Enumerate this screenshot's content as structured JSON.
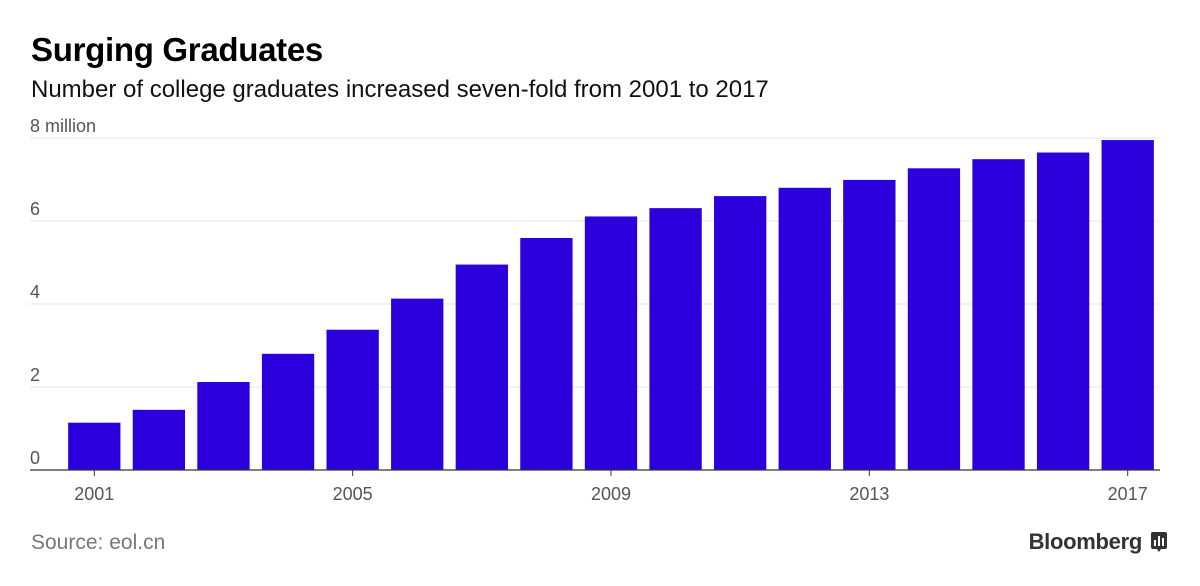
{
  "header": {
    "title": "Surging Graduates",
    "subtitle": "Number of college graduates increased seven-fold from 2001 to 2017"
  },
  "footer": {
    "source": "Source: eol.cn",
    "brand": "Bloomberg",
    "brand_icon": "bloomberg-terminal-icon"
  },
  "colors": {
    "bar": "#2c00dc",
    "grid": "#e6e6e6",
    "axis": "#333333"
  },
  "chart_data": {
    "type": "bar",
    "title": "Surging Graduates",
    "subtitle": "Number of college graduates increased seven-fold from 2001 to 2017",
    "xlabel": "",
    "ylabel": "",
    "categories": [
      "2001",
      "2002",
      "2003",
      "2004",
      "2005",
      "2006",
      "2007",
      "2008",
      "2009",
      "2010",
      "2011",
      "2012",
      "2013",
      "2014",
      "2015",
      "2016",
      "2017"
    ],
    "values": [
      1.14,
      1.45,
      2.12,
      2.8,
      3.38,
      4.13,
      4.95,
      5.59,
      6.11,
      6.31,
      6.6,
      6.8,
      6.99,
      7.27,
      7.49,
      7.65,
      7.95
    ],
    "x_tick_labels": [
      "2001",
      "2005",
      "2009",
      "2013",
      "2017"
    ],
    "y_ticks": [
      0,
      2,
      4,
      6,
      8
    ],
    "y_tick_labels": [
      "0",
      "2",
      "4",
      "6",
      "8 million"
    ],
    "ylim": [
      0,
      8
    ],
    "grid": true,
    "legend": "none"
  }
}
